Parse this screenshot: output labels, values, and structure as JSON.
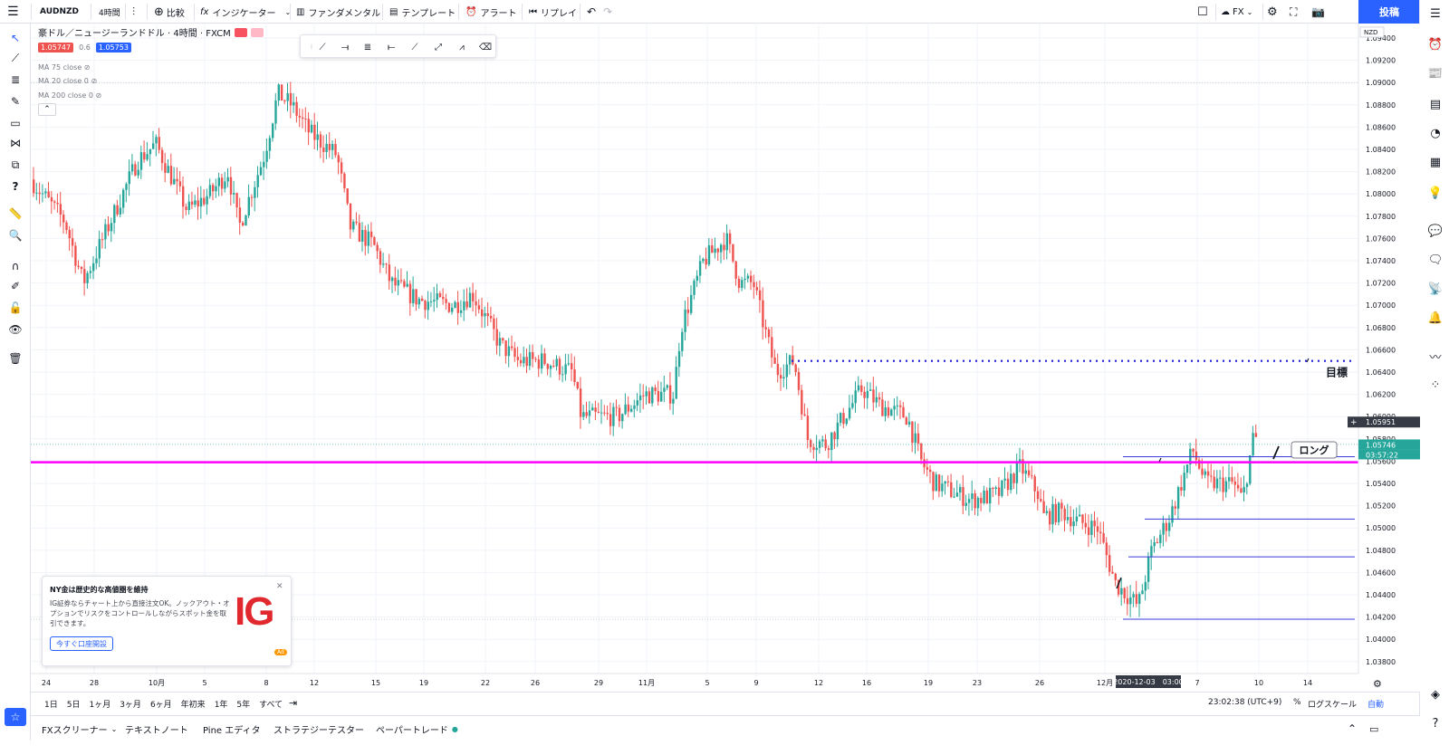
{
  "topbar": {
    "symbol": "AUDNZD",
    "interval": "4時間",
    "compare": "比較",
    "indicators": "インジケーター",
    "fundamental": "ファンダメンタル",
    "template": "テンプレート",
    "alert": "アラート",
    "replay": "リプレイ",
    "fx_label": "FX",
    "post": "投稿"
  },
  "legend": {
    "title": "豪ドル／ニュージーランドドル · 4時間 · FXCM",
    "sell": "1.05747",
    "spread": "0.6",
    "buy": "1.05753",
    "ma": [
      "MA 75 close",
      "MA 20 close 0",
      "MA 200 close 0"
    ]
  },
  "colors": {
    "up": "#26a69a",
    "down": "#ef5350",
    "magenta": "#ff00ff",
    "blue_dots": "#1b1bd6",
    "level": "#3a3adf",
    "post": "#2962ff"
  },
  "price_axis": {
    "currency": "NZD",
    "labels": [
      "1.09400",
      "1.09200",
      "1.09000",
      "1.08800",
      "1.08600",
      "1.08400",
      "1.08200",
      "1.08000",
      "1.07800",
      "1.07600",
      "1.07400",
      "1.07200",
      "1.07000",
      "1.06800",
      "1.06600",
      "1.06400",
      "1.06200",
      "1.06000",
      "1.05800",
      "1.05600",
      "1.05400",
      "1.05200",
      "1.05000",
      "1.04800",
      "1.04600",
      "1.04400",
      "1.04200",
      "1.04000",
      "1.03800"
    ],
    "current": "1.05746",
    "countdown": "03:57:22",
    "crosshair": "1.05951"
  },
  "time_axis": {
    "labels": [
      "24",
      "28",
      "10月",
      "5",
      "8",
      "12",
      "15",
      "19",
      "22",
      "26",
      "29",
      "11月",
      "5",
      "9",
      "12",
      "16",
      "19",
      "23",
      "26",
      "12月",
      "7",
      "10",
      "14"
    ],
    "cursor": "2020-12-03　03:00"
  },
  "annotations": {
    "target": "目標",
    "long": "ロング"
  },
  "ad": {
    "title": "NY金は歴史的な高値圏を維持",
    "body": "IG証券ならチャート上から直接注文OK。ノックアウト・オプションでリスクをコントロールしながらスポット金を取引できます。",
    "button": "今すぐ口座開設",
    "logo": "IG",
    "badge": "Ad"
  },
  "timebar": {
    "ranges": [
      "1日",
      "5日",
      "1ヶ月",
      "3ヶ月",
      "6ヶ月",
      "年初来",
      "1年",
      "5年",
      "すべて"
    ],
    "clock": "23:02:38 (UTC+9)",
    "percent": "%",
    "log": "ログスケール",
    "auto": "自動"
  },
  "bottombar": {
    "tabs": [
      "FXスクリーナー",
      "テキストノート",
      "Pine エディタ",
      "ストラテジーテスター",
      "ペーパートレード"
    ]
  }
}
